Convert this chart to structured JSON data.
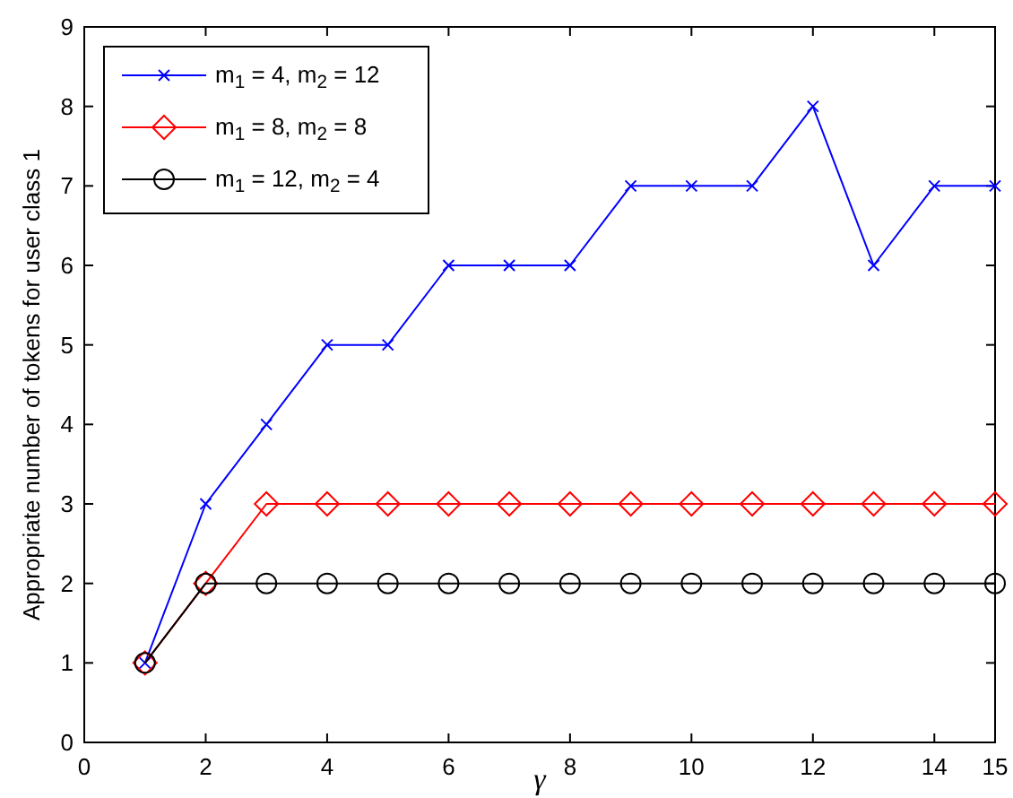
{
  "chart_data": {
    "type": "line",
    "xlabel": "γ",
    "ylabel": "Appropriate number of tokens for user class 1",
    "x": [
      1,
      2,
      3,
      4,
      5,
      6,
      7,
      8,
      9,
      10,
      11,
      12,
      13,
      14,
      15
    ],
    "series": [
      {
        "name": "m$_{1}$ = 4, m$_{2}$ = 12",
        "color": "#0000ff",
        "marker": "cross",
        "values": [
          1,
          3,
          4,
          5,
          5,
          6,
          6,
          6,
          7,
          7,
          7,
          8,
          6,
          7,
          7
        ]
      },
      {
        "name": "m$_{1}$ = 8, m$_{2}$ = 8",
        "color": "#ff0000",
        "marker": "diamond",
        "values": [
          1,
          2,
          3,
          3,
          3,
          3,
          3,
          3,
          3,
          3,
          3,
          3,
          3,
          3,
          3
        ]
      },
      {
        "name": "m$_{1}$ = 12, m$_{2}$ = 4",
        "color": "#000000",
        "marker": "circle",
        "values": [
          1,
          2,
          2,
          2,
          2,
          2,
          2,
          2,
          2,
          2,
          2,
          2,
          2,
          2,
          2
        ]
      }
    ],
    "xlim": [
      0,
      15
    ],
    "xticks": [
      0,
      2,
      4,
      6,
      8,
      10,
      12,
      14,
      15
    ],
    "ylim": [
      0,
      9
    ],
    "yticks": [
      0,
      1,
      2,
      3,
      4,
      5,
      6,
      7,
      8,
      9
    ],
    "grid": false,
    "legend": "top left",
    "line_style": "solid"
  }
}
